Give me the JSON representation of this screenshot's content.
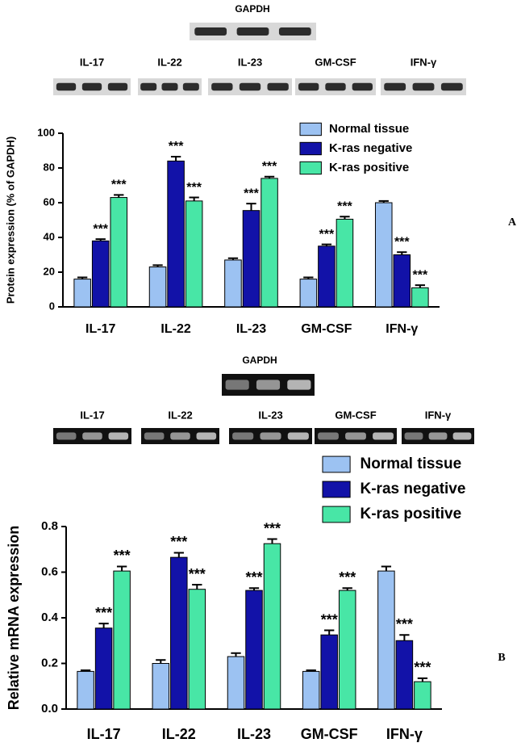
{
  "chart_data": [
    {
      "type": "bar",
      "panel_label": "A",
      "blot_title": "GAPDH",
      "blot_labels": [
        "IL-17",
        "IL-22",
        "IL-23",
        "GM-CSF",
        "IFN-γ"
      ],
      "ylabel": "Protein expression (% of GAPDH)",
      "categories": [
        "IL-17",
        "IL-22",
        "IL-23",
        "GM-CSF",
        "IFN-γ"
      ],
      "ylim": [
        0,
        100
      ],
      "yticks": [
        0,
        20,
        40,
        60,
        80,
        100
      ],
      "series": [
        {
          "name": "Normal tissue",
          "color": "#9cc2f2",
          "values": [
            16,
            23,
            27,
            16,
            60
          ],
          "errors": [
            1,
            1,
            1,
            1,
            1
          ]
        },
        {
          "name": "K-ras negative",
          "color": "#1212a8",
          "values": [
            38,
            84,
            55.5,
            35,
            30
          ],
          "errors": [
            1,
            2.5,
            4,
            1,
            1.5
          ],
          "significance": [
            "***",
            "***",
            "***",
            "***",
            "***"
          ]
        },
        {
          "name": "K-ras positive",
          "color": "#48e6a6",
          "values": [
            63,
            61,
            74,
            50.5,
            11
          ],
          "errors": [
            1.5,
            2,
            1,
            1.5,
            1.5
          ],
          "significance": [
            "***",
            "***",
            "***",
            "***",
            "***"
          ]
        }
      ]
    },
    {
      "type": "bar",
      "panel_label": "B",
      "blot_title": "GAPDH",
      "blot_labels": [
        "IL-17",
        "IL-22",
        "IL-23",
        "GM-CSF",
        "IFN-γ"
      ],
      "ylabel": "Relative mRNA expression",
      "categories": [
        "IL-17",
        "IL-22",
        "IL-23",
        "GM-CSF",
        "IFN-γ"
      ],
      "ylim": [
        0,
        0.8
      ],
      "yticks": [
        {
          "value": 0,
          "label": "0.0"
        },
        0.2,
        0.4,
        0.6,
        0.8
      ],
      "series": [
        {
          "name": "Normal tissue",
          "color": "#9cc2f2",
          "values": [
            0.165,
            0.2,
            0.23,
            0.165,
            0.605
          ],
          "errors": [
            0.005,
            0.015,
            0.015,
            0.005,
            0.02
          ]
        },
        {
          "name": "K-ras negative",
          "color": "#1212a8",
          "values": [
            0.355,
            0.665,
            0.52,
            0.325,
            0.3
          ],
          "errors": [
            0.02,
            0.02,
            0.01,
            0.02,
            0.025
          ],
          "significance": [
            "***",
            "***",
            "***",
            "***",
            "***"
          ]
        },
        {
          "name": "K-ras positive",
          "color": "#48e6a6",
          "values": [
            0.605,
            0.525,
            0.725,
            0.52,
            0.12
          ],
          "errors": [
            0.02,
            0.02,
            0.02,
            0.01,
            0.015
          ],
          "significance": [
            "***",
            "***",
            "***",
            "***",
            "***"
          ]
        }
      ]
    }
  ]
}
